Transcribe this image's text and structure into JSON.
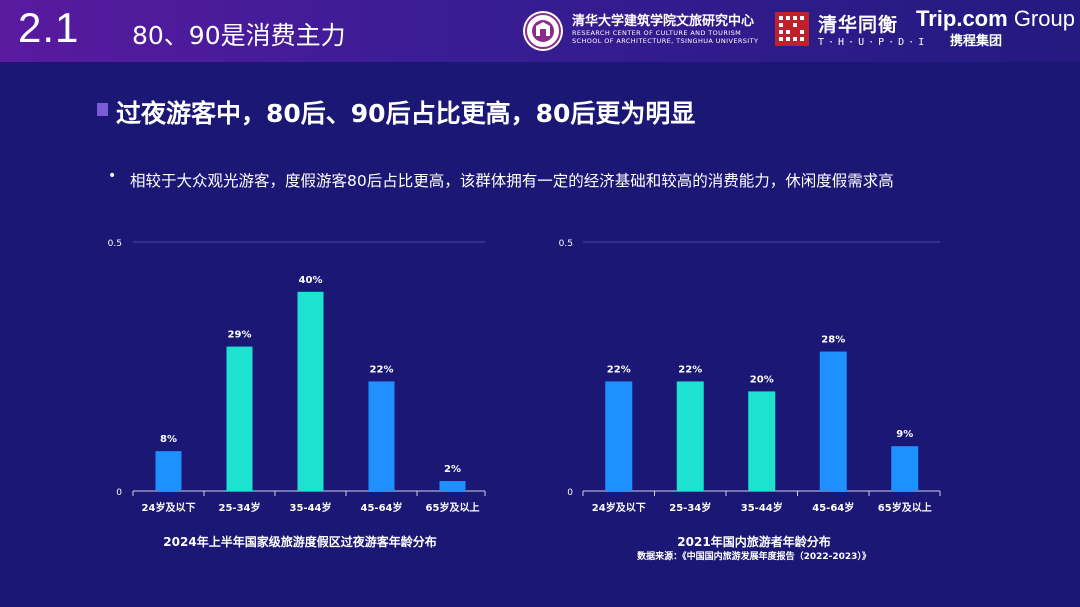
{
  "header": {
    "section_number": "2.1",
    "title": "80、90是消费主力",
    "logos": {
      "tsinghua_cn": "清华大学建筑学院文旅研究中心",
      "tsinghua_en_line1": "RESEARCH CENTER OF CULTURE AND TOURISM",
      "tsinghua_en_line2": "SCHOOL OF ARCHITECTURE, TSINGHUA UNIVERSITY",
      "thupdi_cn": "清华同衡",
      "thupdi_en": "T·H·U·P·D·I",
      "trip_name": "Trip.com",
      "trip_group": "Group",
      "trip_cn": "携程集团"
    }
  },
  "main_title": "过夜游客中，80后、90后占比更高，80后更为明显",
  "subtitle": "相较于大众观光游客，度假游客80后占比更高，该群体拥有一定的经济基础和较高的消费能力，休闲度假需求高",
  "colors": {
    "background": "#1a1775",
    "bar_blue": "#1e90ff",
    "bar_teal": "#1de2cf",
    "gridline": "#4a4a9a",
    "title_bullet": "#7b5cd6"
  },
  "chart_data": [
    {
      "type": "bar",
      "title": "2024年上半年国家级旅游度假区过夜游客年龄分布",
      "categories": [
        "24岁及以下",
        "25-34岁",
        "35-44岁",
        "45-64岁",
        "65岁及以上"
      ],
      "values": [
        0.08,
        0.29,
        0.4,
        0.22,
        0.02
      ],
      "data_labels": [
        "8%",
        "29%",
        "40%",
        "22%",
        "2%"
      ],
      "bar_colors": [
        "#1e90ff",
        "#1de2cf",
        "#1de2cf",
        "#1e90ff",
        "#1e90ff"
      ],
      "ylim": [
        0,
        0.5
      ],
      "y_ticks": [
        0,
        0.5
      ],
      "y_tick_labels": [
        "0",
        "0.5"
      ],
      "grid": true
    },
    {
      "type": "bar",
      "title": "2021年国内旅游者年龄分布",
      "source": "数据来源：《中国国内旅游发展年度报告（2022-2023）》",
      "categories": [
        "24岁及以下",
        "25-34岁",
        "35-44岁",
        "45-64岁",
        "65岁及以上"
      ],
      "values": [
        0.22,
        0.22,
        0.2,
        0.28,
        0.09
      ],
      "data_labels": [
        "22%",
        "22%",
        "20%",
        "28%",
        "9%"
      ],
      "bar_colors": [
        "#1e90ff",
        "#1de2cf",
        "#1de2cf",
        "#1e90ff",
        "#1e90ff"
      ],
      "ylim": [
        0,
        0.5
      ],
      "y_ticks": [
        0,
        0.5
      ],
      "y_tick_labels": [
        "0",
        "0.5"
      ],
      "grid": true
    }
  ]
}
